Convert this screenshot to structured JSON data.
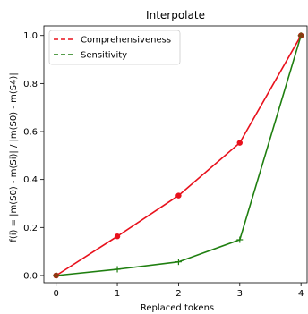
{
  "chart_data": {
    "type": "line",
    "title": "Interpolate",
    "xlabel": "Replaced tokens",
    "ylabel": "f(i) = |m(S0) - m(Si)| / |m(S0) - m(S4)|",
    "x": [
      0,
      1,
      2,
      3,
      4
    ],
    "xlim": [
      -0.2,
      4.1
    ],
    "ylim": [
      -0.03,
      1.04
    ],
    "xticks": [
      "0",
      "1",
      "2",
      "3",
      "4"
    ],
    "yticks": [
      "0.0",
      "0.2",
      "0.4",
      "0.6",
      "0.8",
      "1.0"
    ],
    "grid": false,
    "legend_position": "top-left",
    "series": [
      {
        "name": "Comprehensiveness",
        "color": "#e8111c",
        "marker": "circle",
        "values": [
          0.0,
          0.163,
          0.333,
          0.553,
          1.0
        ]
      },
      {
        "name": "Sensitivity",
        "color": "#1f7f10",
        "marker": "plus",
        "values": [
          0.0,
          0.026,
          0.057,
          0.149,
          1.0
        ]
      }
    ]
  }
}
